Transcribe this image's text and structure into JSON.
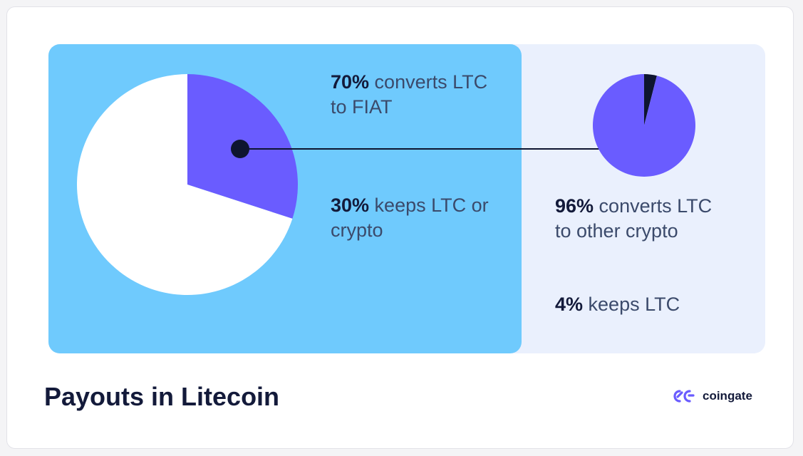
{
  "colors": {
    "left_panel": "#6fcafd",
    "right_panel": "#eaf0fd",
    "purple": "#6a5cff",
    "white": "#ffffff",
    "dark": "#0e1530",
    "text": "#3b4a6b"
  },
  "chart_data": [
    {
      "type": "pie",
      "slices": [
        {
          "label": "converts LTC to FIAT",
          "percent": "70%",
          "value": 70,
          "color": "#ffffff"
        },
        {
          "label": "keeps LTC or crypto",
          "percent": "30%",
          "value": 30,
          "color": "#6a5cff"
        }
      ]
    },
    {
      "type": "pie",
      "slices": [
        {
          "label": "converts LTC to other crypto",
          "percent": "96%",
          "value": 96,
          "color": "#6a5cff"
        },
        {
          "label": "keeps LTC",
          "percent": "4%",
          "value": 4,
          "color": "#0e1530"
        }
      ]
    }
  ],
  "labels": {
    "l70_pct": "70%",
    "l70_text": " converts LTC to FIAT",
    "l30_pct": "30%",
    "l30_text": " keeps LTC or crypto",
    "l96_pct": "96%",
    "l96_text": " converts LTC to other crypto",
    "l4_pct": "4%",
    "l4_text": " keeps LTC"
  },
  "title": "Payouts in Litecoin",
  "brand": {
    "name": "coingate",
    "icon": "coingate-logo-icon"
  }
}
